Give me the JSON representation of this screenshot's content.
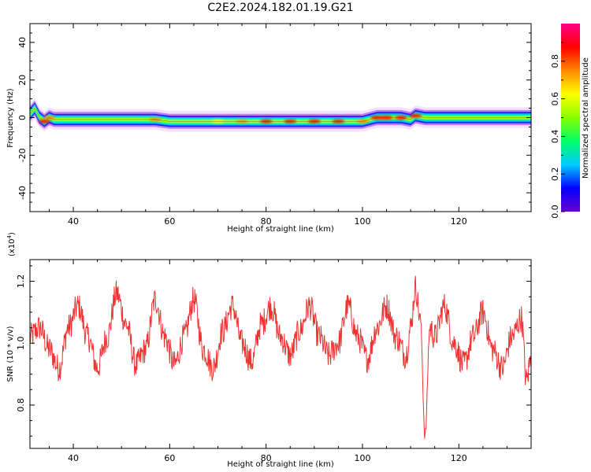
{
  "chart_data": [
    {
      "type": "heatmap",
      "title": "C2E2.2024.182.01.19.G21",
      "xlabel": "Height of straight line (km)",
      "ylabel": "Frequency (Hz)",
      "xlim": [
        31,
        135
      ],
      "ylim": [
        -50,
        50
      ],
      "x_ticks": [
        "40",
        "60",
        "80",
        "100",
        "120"
      ],
      "y_ticks": [
        "40",
        "20",
        "0",
        "-20",
        "-40"
      ],
      "ridge": {
        "x": [
          31,
          32,
          33,
          34,
          35,
          36,
          40,
          45,
          50,
          55,
          57,
          60,
          65,
          70,
          75,
          80,
          85,
          90,
          95,
          100,
          103,
          105,
          108,
          110,
          111,
          113,
          120,
          125,
          130,
          135
        ],
        "freq": [
          2,
          5,
          0,
          -2,
          0,
          -1,
          -1,
          -1,
          -1,
          -1,
          -1,
          -2,
          -2,
          -2,
          -2,
          -2,
          -2,
          -2,
          -2,
          -2,
          0,
          0,
          0,
          -1,
          1,
          0,
          0,
          0,
          0,
          0
        ],
        "amplitude": [
          0.4,
          0.6,
          0.5,
          0.85,
          0.7,
          0.6,
          0.55,
          0.55,
          0.55,
          0.55,
          0.7,
          0.6,
          0.6,
          0.65,
          0.7,
          0.85,
          0.9,
          0.85,
          0.9,
          0.7,
          0.9,
          0.9,
          0.85,
          0.5,
          0.9,
          0.6,
          0.55,
          0.55,
          0.6,
          0.55
        ]
      },
      "colorbar": {
        "label": "Normalized spectral amplitude",
        "range": [
          0.0,
          1.0
        ],
        "ticks": [
          "0.0",
          "0.2",
          "0.4",
          "0.6",
          "0.8"
        ],
        "colors": [
          "#6600cc",
          "#0000ff",
          "#00ccff",
          "#00ff66",
          "#88ff00",
          "#ffff00",
          "#ff8800",
          "#ff0000",
          "#ff0088"
        ]
      }
    },
    {
      "type": "line",
      "xlabel": "Height of straight line (km)",
      "ylabel": "SNR (10 * v/v)",
      "yscale_label": "(x10",
      "yscale_exp": "4",
      "yscale_close": ")",
      "xlim": [
        31,
        135
      ],
      "ylim": [
        0.66,
        1.27
      ],
      "x_ticks": [
        "40",
        "60",
        "80",
        "100",
        "120"
      ],
      "y_ticks": [
        "1.2",
        "1.0",
        "0.8"
      ],
      "color": "#ee3333",
      "series": [
        {
          "x": [
            31,
            33,
            35,
            37,
            39,
            41,
            43,
            45,
            47,
            49,
            51,
            53,
            55,
            57,
            59,
            61,
            63,
            65,
            67,
            69,
            71,
            73,
            75,
            77,
            79,
            81,
            83,
            85,
            87,
            89,
            91,
            93,
            95,
            97,
            99,
            101,
            103,
            105,
            107,
            109,
            110,
            111,
            112,
            113,
            114,
            115,
            117,
            119,
            121,
            123,
            125,
            127,
            129,
            131,
            133,
            134,
            135
          ],
          "values": [
            1.02,
            1.05,
            0.98,
            0.92,
            1.05,
            1.12,
            1.02,
            0.92,
            1.02,
            1.16,
            1.06,
            0.93,
            0.98,
            1.14,
            1.02,
            0.93,
            1.02,
            1.14,
            0.98,
            0.92,
            1.04,
            1.12,
            1.0,
            0.94,
            1.06,
            1.12,
            1.02,
            0.96,
            1.04,
            1.12,
            1.02,
            0.96,
            1.0,
            1.12,
            1.02,
            0.95,
            1.05,
            1.12,
            1.02,
            0.96,
            1.05,
            1.18,
            1.08,
            0.7,
            1.05,
            1.02,
            1.12,
            1.0,
            0.93,
            1.02,
            1.1,
            0.98,
            0.92,
            1.02,
            1.08,
            0.88,
            0.95
          ]
        }
      ]
    }
  ]
}
